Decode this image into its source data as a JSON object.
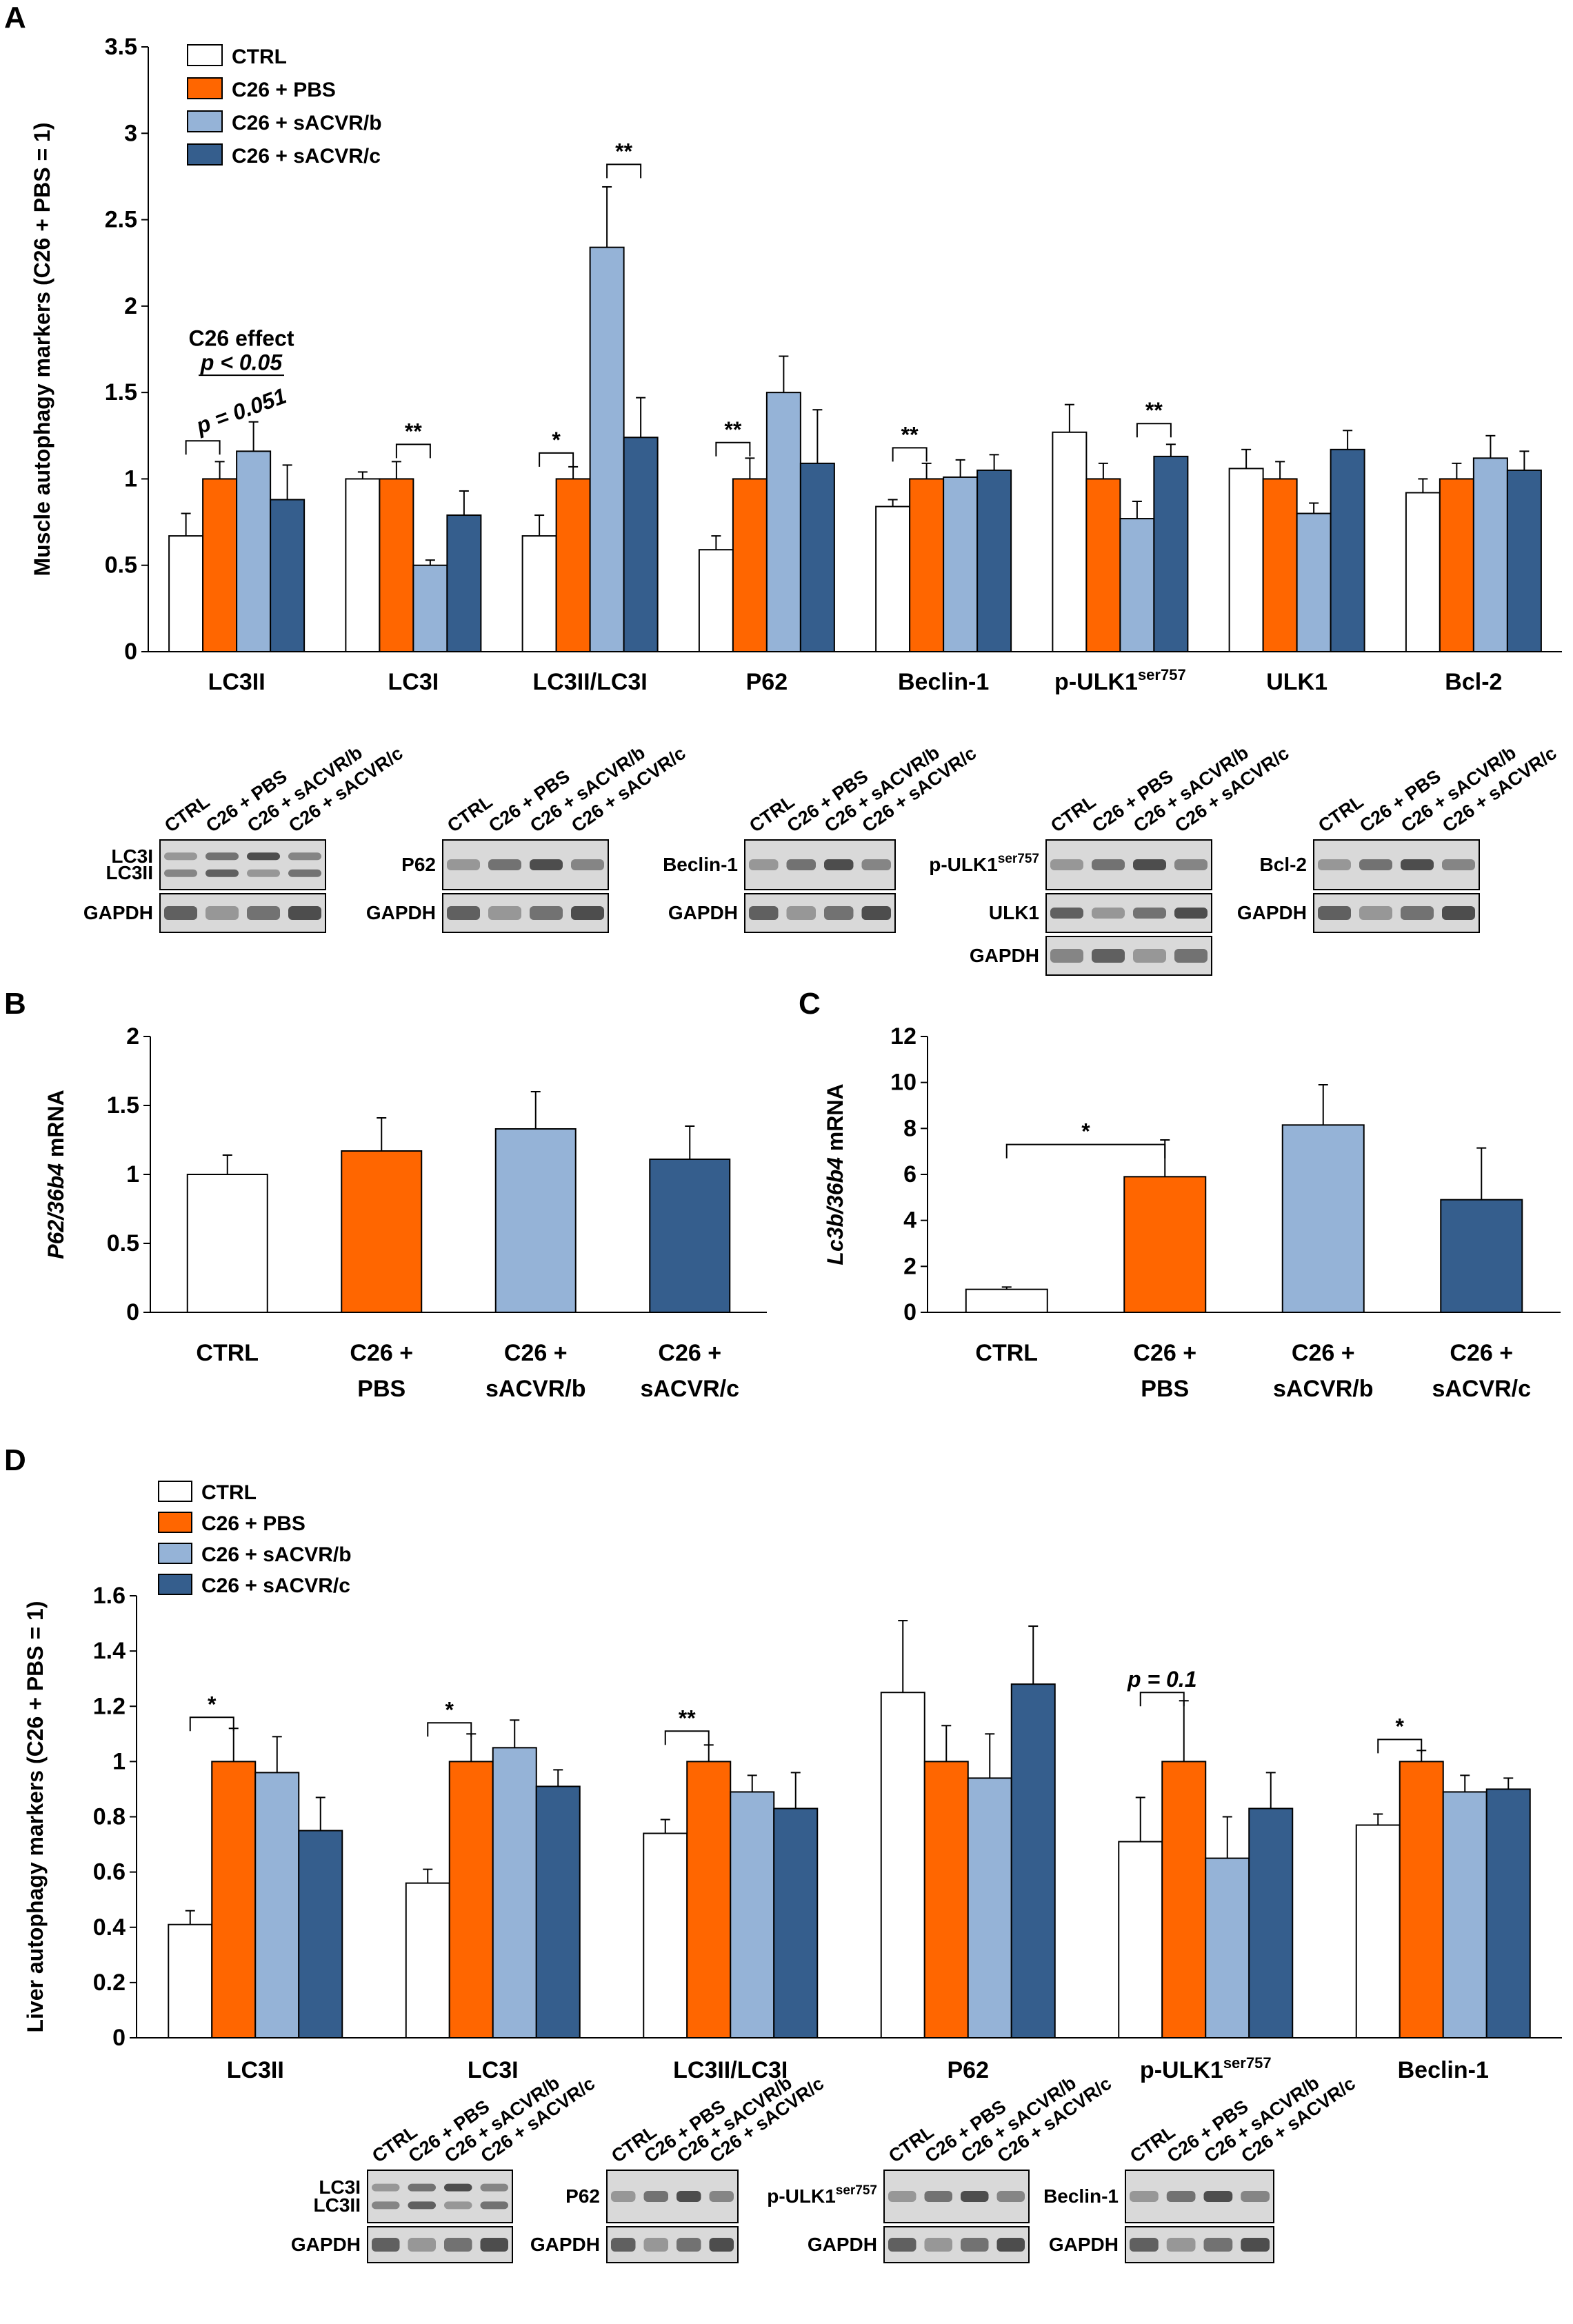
{
  "colors": {
    "CTRL": "#ffffff",
    "C26 + PBS": "#ff6600",
    "C26 + sACVR/b": "#95b3d7",
    "C26 + sACVR/c": "#355e8d"
  },
  "panels": {
    "A": "A",
    "B": "B",
    "C": "C",
    "D": "D"
  },
  "chart_data": [
    {
      "id": "A",
      "type": "bar",
      "ylabel": "Muscle autophagy markers (C26 + PBS = 1)",
      "ylim": [
        0,
        3.5
      ],
      "yticks": [
        "0",
        "0.5",
        "1",
        "1.5",
        "2",
        "2.5",
        "3",
        "3.5"
      ],
      "categories": [
        "LC3II",
        "LC3I",
        "LC3II/LC3I",
        "P62",
        "Beclin-1",
        "p-ULK1",
        "ULK1",
        "Bcl-2"
      ],
      "category_superscripts": {
        "p-ULK1": "ser757"
      },
      "legend": [
        "CTRL",
        "C26 + PBS",
        "C26 + sACVR/b",
        "C26 + sACVR/c"
      ],
      "series": [
        {
          "name": "CTRL",
          "values": [
            0.67,
            1.0,
            0.67,
            0.59,
            0.84,
            1.27,
            1.06,
            0.92
          ],
          "errors": [
            0.13,
            0.04,
            0.12,
            0.08,
            0.04,
            0.16,
            0.11,
            0.08
          ]
        },
        {
          "name": "C26 + PBS",
          "values": [
            1.0,
            1.0,
            1.0,
            1.0,
            1.0,
            1.0,
            1.0,
            1.0
          ],
          "errors": [
            0.1,
            0.1,
            0.07,
            0.12,
            0.09,
            0.09,
            0.1,
            0.09
          ]
        },
        {
          "name": "C26 + sACVR/b",
          "values": [
            1.16,
            0.5,
            2.34,
            1.5,
            1.01,
            0.77,
            0.8,
            1.12
          ],
          "errors": [
            0.17,
            0.03,
            0.35,
            0.21,
            0.1,
            0.1,
            0.06,
            0.13
          ]
        },
        {
          "name": "C26 + sACVR/c",
          "values": [
            0.88,
            0.79,
            1.24,
            1.09,
            1.05,
            1.13,
            1.17,
            1.05
          ],
          "errors": [
            0.2,
            0.14,
            0.23,
            0.31,
            0.09,
            0.07,
            0.11,
            0.11
          ]
        }
      ],
      "annotations": [
        {
          "text": "p = 0.051",
          "between": [
            "LC3II",
            0,
            1
          ]
        },
        {
          "text": "C26 effect",
          "target": "LC3II"
        },
        {
          "text": "p < 0.05",
          "target": "LC3II"
        },
        {
          "text": "**",
          "between": [
            "LC3I",
            1,
            2
          ]
        },
        {
          "text": "*",
          "between": [
            "LC3II/LC3I",
            0,
            1
          ]
        },
        {
          "text": "**",
          "between": [
            "LC3II/LC3I",
            2,
            3
          ]
        },
        {
          "text": "**",
          "between": [
            "P62",
            0,
            1
          ]
        },
        {
          "text": "**",
          "between": [
            "Beclin-1",
            0,
            1
          ]
        },
        {
          "text": "**",
          "between": [
            "p-ULK1",
            2,
            3
          ]
        }
      ]
    },
    {
      "id": "B",
      "type": "bar",
      "ylabel_italic": "P62/36b4",
      "ylabel_plain": " mRNA",
      "ylim": [
        0,
        2
      ],
      "yticks": [
        "0",
        "0.5",
        "1",
        "1.5",
        "2"
      ],
      "categories": [
        [
          "CTRL"
        ],
        [
          "C26 +",
          "PBS"
        ],
        [
          "C26 +",
          "sACVR/b"
        ],
        [
          "C26 +",
          "sACVR/c"
        ]
      ],
      "values": [
        1.0,
        1.17,
        1.33,
        1.11
      ],
      "errors": [
        0.14,
        0.24,
        0.27,
        0.24
      ]
    },
    {
      "id": "C",
      "type": "bar",
      "ylabel_italic": "Lc3b/36b4",
      "ylabel_plain": " mRNA",
      "ylim": [
        0,
        12
      ],
      "yticks": [
        "0",
        "2",
        "4",
        "6",
        "8",
        "10",
        "12"
      ],
      "categories": [
        [
          "CTRL"
        ],
        [
          "C26 +",
          "PBS"
        ],
        [
          "C26 +",
          "sACVR/b"
        ],
        [
          "C26 +",
          "sACVR/c"
        ]
      ],
      "values": [
        1.0,
        5.9,
        8.15,
        4.9
      ],
      "errors": [
        0.1,
        1.6,
        1.75,
        2.25
      ],
      "annotations": [
        {
          "text": "*",
          "between": [
            0,
            1
          ]
        }
      ]
    },
    {
      "id": "D",
      "type": "bar",
      "ylabel": "Liver autophagy markers (C26 + PBS = 1)",
      "ylim": [
        0,
        1.6
      ],
      "yticks": [
        "0",
        "0.2",
        "0.4",
        "0.6",
        "0.8",
        "1",
        "1.2",
        "1.4",
        "1.6"
      ],
      "categories": [
        "LC3II",
        "LC3I",
        "LC3II/LC3I",
        "P62",
        "p-ULK1",
        "Beclin-1"
      ],
      "category_superscripts": {
        "p-ULK1": "ser757"
      },
      "legend": [
        "CTRL",
        "C26 + PBS",
        "C26 + sACVR/b",
        "C26 + sACVR/c"
      ],
      "series": [
        {
          "name": "CTRL",
          "values": [
            0.41,
            0.56,
            0.74,
            1.25,
            0.71,
            0.77
          ],
          "errors": [
            0.05,
            0.05,
            0.05,
            0.26,
            0.16,
            0.04
          ]
        },
        {
          "name": "C26 + PBS",
          "values": [
            1.0,
            1.0,
            1.0,
            1.0,
            1.0,
            1.0
          ],
          "errors": [
            0.12,
            0.1,
            0.06,
            0.13,
            0.22,
            0.04
          ]
        },
        {
          "name": "C26 + sACVR/b",
          "values": [
            0.96,
            1.05,
            0.89,
            0.94,
            0.65,
            0.89
          ],
          "errors": [
            0.13,
            0.1,
            0.06,
            0.16,
            0.15,
            0.06
          ]
        },
        {
          "name": "C26 + sACVR/c",
          "values": [
            0.75,
            0.91,
            0.83,
            1.28,
            0.83,
            0.9
          ],
          "errors": [
            0.12,
            0.06,
            0.13,
            0.21,
            0.13,
            0.04
          ]
        }
      ],
      "annotations": [
        {
          "text": "*",
          "between": [
            "LC3II",
            0,
            1
          ]
        },
        {
          "text": "*",
          "between": [
            "LC3I",
            0,
            1
          ]
        },
        {
          "text": "**",
          "between": [
            "LC3II/LC3I",
            0,
            1
          ]
        },
        {
          "text": "p = 0.1",
          "between": [
            "p-ULK1",
            0,
            1
          ]
        },
        {
          "text": "*",
          "between": [
            "Beclin-1",
            0,
            1
          ]
        }
      ]
    }
  ],
  "blots": {
    "lanes": [
      "CTRL",
      "C26 + PBS",
      "C26 + sACVR/b",
      "C26 + sACVR/c"
    ],
    "muscle": [
      {
        "rows": [
          [
            "LC3I",
            "LC3II"
          ],
          [
            "GAPDH"
          ]
        ]
      },
      {
        "rows": [
          [
            "P62"
          ],
          [
            "GAPDH"
          ]
        ]
      },
      {
        "rows": [
          [
            "Beclin-1"
          ],
          [
            "GAPDH"
          ]
        ]
      },
      {
        "rows": [
          [
            "p-ULK1"
          ],
          [
            "ULK1"
          ],
          [
            "GAPDH"
          ]
        ],
        "superscript": "ser757"
      },
      {
        "rows": [
          [
            "Bcl-2"
          ],
          [
            "GAPDH"
          ]
        ]
      }
    ],
    "liver": [
      {
        "rows": [
          [
            "LC3I",
            "LC3II"
          ],
          [
            "GAPDH"
          ]
        ]
      },
      {
        "rows": [
          [
            "P62"
          ],
          [
            "GAPDH"
          ]
        ]
      },
      {
        "rows": [
          [
            "p-ULK1"
          ],
          [
            "GAPDH"
          ]
        ],
        "superscript": "ser757"
      },
      {
        "rows": [
          [
            "Beclin-1"
          ],
          [
            "GAPDH"
          ]
        ]
      }
    ]
  }
}
